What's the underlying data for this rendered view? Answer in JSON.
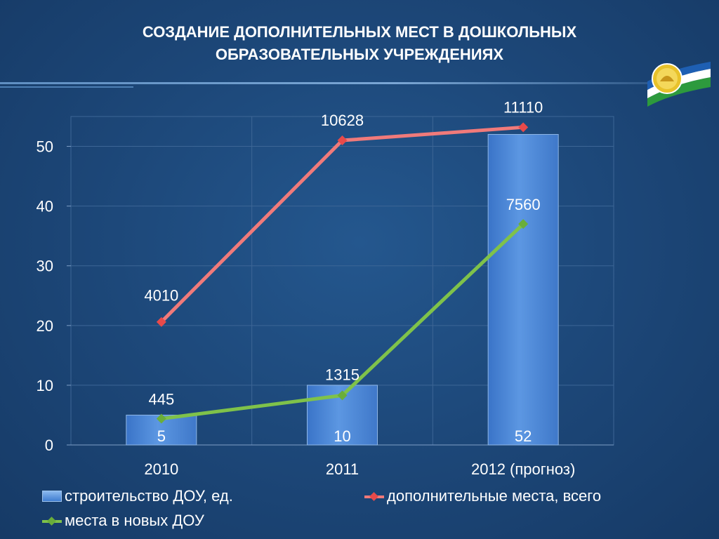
{
  "slide": {
    "title_line1": "СОЗДАНИЕ ДОПОЛНИТЕЛЬНЫХ МЕСТ В ДОШКОЛЬНЫХ",
    "title_line2": "ОБРАЗОВАТЕЛЬНЫХ УЧРЕЖДЕНИЯХ"
  },
  "colors": {
    "bar": "#4a86d6",
    "line_total": "#f07a7a",
    "marker_total": "#e84a4a",
    "line_new": "#7fc24a",
    "marker_new": "#6aae3a"
  },
  "chart_data": {
    "type": "bar",
    "categories": [
      "2010",
      "2011",
      "2012 (прогноз)"
    ],
    "ylim": [
      0,
      55
    ],
    "yticks": [
      0,
      10,
      20,
      30,
      40,
      50
    ],
    "grid": true,
    "legend_position": "bottom",
    "series": [
      {
        "name": "строительство ДОУ, ед.",
        "kind": "bar",
        "values": [
          5,
          10,
          52
        ],
        "labels": [
          "5",
          "10",
          "52"
        ]
      },
      {
        "name": "дополнительные места, всего",
        "kind": "line",
        "values": [
          20.6,
          51,
          53.2
        ],
        "labels": [
          "4010",
          "10628",
          "11110"
        ]
      },
      {
        "name": "места в новых ДОУ",
        "kind": "line",
        "values": [
          4.4,
          8.3,
          37
        ],
        "labels": [
          "445",
          "1315",
          "7560"
        ]
      }
    ]
  }
}
